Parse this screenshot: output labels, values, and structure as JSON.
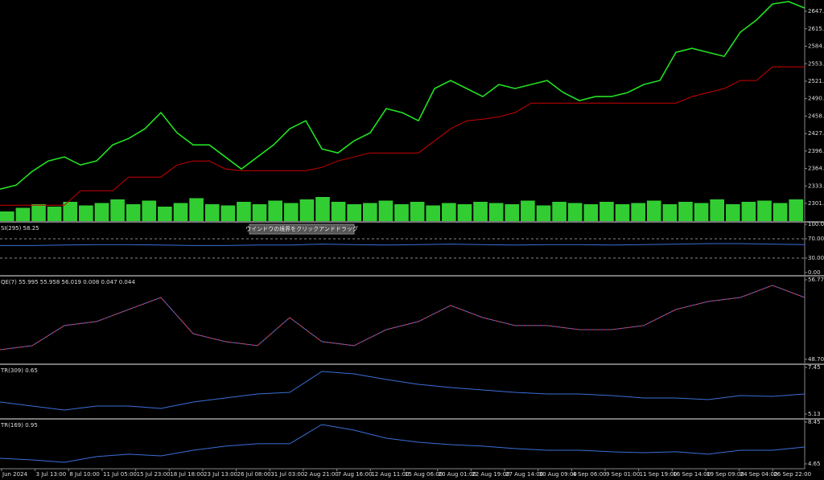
{
  "chart_data": [
    {
      "type": "line",
      "ylim": [
        2270,
        2667.6
      ],
      "yticks": [
        2647.3,
        2615.9,
        2584.5,
        {
          "value": 2553.0,
          "label": "2553.0"
        },
        2521.6,
        2490.2,
        2458.8,
        2427.4,
        {
          "value": 2396.0,
          "label": "2396.0"
        },
        2364.6,
        2333.2,
        2301.8
      ],
      "series": [
        {
          "color": "#22e022",
          "values": [
            2327.5,
            2334.7,
            2359.3,
            2378.2,
            2385.4,
            2370.9,
            2378.2,
            2407.1,
            2418.7,
            2436.0,
            2465.0,
            2428.8,
            2407.1,
            2407.1,
            2385.4,
            2363.7,
            2385.4,
            2407.1,
            2436.0,
            2450.5,
            2399.9,
            2392.6,
            2414.3,
            2428.8,
            2472.2,
            2465.0,
            2450.5,
            2508.4,
            2522.9,
            2508.4,
            2493.9,
            2515.6,
            2508.4,
            2515.6,
            2522.9,
            2501.2,
            2486.7,
            2493.9,
            2493.9,
            2501.2,
            2515.6,
            2522.9,
            2573.5,
            2580.7,
            2573.5,
            2566.3,
            2609.7,
            2631.4,
            2660.3,
            2664.7,
            2653.1
          ]
        },
        {
          "color": "#cc0000",
          "values": [
            2298.6,
            2298.6,
            2298.6,
            2298.6,
            2298.6,
            2324.6,
            2324.6,
            2324.6,
            2349.2,
            2349.2,
            2349.2,
            2370.9,
            2378.2,
            2378.2,
            2363.7,
            2360.8,
            2360.8,
            2360.8,
            2360.8,
            2360.8,
            2366.6,
            2378.2,
            2385.4,
            2392.6,
            2392.6,
            2392.6,
            2392.6,
            2414.3,
            2436.0,
            2450.5,
            2453.4,
            2457.7,
            2465.0,
            2482.3,
            2482.3,
            2482.3,
            2482.3,
            2482.3,
            2482.3,
            2482.3,
            2482.3,
            2482.3,
            2482.3,
            2493.9,
            2501.2,
            2508.4,
            2522.9,
            2522.9,
            2547.5,
            2547.5,
            2547.5
          ]
        }
      ],
      "volume": {
        "color": "#32cd32",
        "values": [
          40,
          55,
          70,
          60,
          80,
          65,
          75,
          90,
          70,
          85,
          60,
          75,
          95,
          70,
          65,
          80,
          70,
          85,
          75,
          90,
          100,
          80,
          70,
          75,
          85,
          70,
          80,
          65,
          75,
          70,
          80,
          75,
          70,
          85,
          65,
          80,
          75,
          70,
          80,
          70,
          75,
          85,
          70,
          80,
          75,
          90,
          70,
          80,
          85,
          75,
          90
        ]
      }
    },
    {
      "type": "line",
      "title": "SI(295) 58.25",
      "ylim": [
        -5,
        103.3
      ],
      "yticks": [
        {
          "value": 100,
          "label": "100.00"
        },
        {
          "value": 70,
          "label": "70.00"
        },
        {
          "value": 30,
          "label": "30.00"
        },
        {
          "value": 0,
          "label": "0.00"
        }
      ],
      "levels": [
        70,
        30
      ],
      "series": [
        {
          "color": "#3a6fd8",
          "values": [
            56,
            56,
            57,
            58,
            58,
            57,
            56,
            56,
            57,
            57,
            59,
            58,
            57,
            58,
            59,
            58,
            57,
            58,
            58,
            57,
            58,
            59,
            60,
            60,
            59,
            58
          ]
        }
      ]
    },
    {
      "type": "line",
      "title": "QE(7) 55.995 55.958 56.019 0.008 0.047 0.044",
      "ylim": [
        48.29,
        57.1
      ],
      "yticks": [
        56.777,
        48.702
      ],
      "series": [
        {
          "color": "#3a6fd8",
          "dash_color": "#ff3030",
          "values": [
            49.68,
            50.09,
            52.13,
            52.54,
            53.76,
            54.98,
            51.31,
            50.5,
            50.09,
            52.94,
            50.5,
            50.09,
            51.72,
            52.54,
            54.17,
            52.94,
            52.13,
            52.13,
            51.72,
            51.72,
            52.13,
            53.76,
            54.57,
            54.98,
            56.21,
            54.98
          ]
        }
      ]
    },
    {
      "type": "line",
      "title": "TR(309) 0.65",
      "ylim": [
        4.93,
        7.57
      ],
      "yticks": [
        7.45,
        5.13
      ],
      "series": [
        {
          "color": "#3a6fd8",
          "values": [
            5.73,
            5.53,
            5.33,
            5.53,
            5.53,
            5.41,
            5.73,
            5.93,
            6.13,
            6.21,
            7.25,
            7.13,
            6.85,
            6.61,
            6.45,
            6.33,
            6.21,
            6.13,
            6.13,
            6.05,
            5.93,
            5.93,
            5.85,
            6.05,
            6.01,
            6.13
          ]
        }
      ]
    },
    {
      "type": "line",
      "title": "TR(169) 0.95",
      "ylim": [
        4.28,
        8.67
      ],
      "yticks": [
        8.45,
        4.65
      ],
      "series": [
        {
          "color": "#3a6fd8",
          "values": [
            5.16,
            5.01,
            4.79,
            5.31,
            5.53,
            5.38,
            5.89,
            6.26,
            6.48,
            6.48,
            8.23,
            7.72,
            6.99,
            6.62,
            6.4,
            6.26,
            6.04,
            5.89,
            5.89,
            5.75,
            5.67,
            5.75,
            5.53,
            5.89,
            5.89,
            6.18
          ]
        }
      ]
    }
  ],
  "time_axis": {
    "labels": [
      "Jun 2024",
      "3 Jul 13:00",
      "8 Jul 10:00",
      "11 Jul 05:00",
      "15 Jul 23:00",
      "18 Jul 18:00",
      "23 Jul 13:00",
      "26 Jul 08:00",
      "31 Jul 03:00",
      "2 Aug 21:00",
      "7 Aug 16:00",
      "12 Aug 11:00",
      "15 Aug 06:00",
      "20 Aug 01:00",
      "22 Aug 19:00",
      "27 Aug 14:00",
      "30 Aug 09:00",
      "4 Sep 06:00",
      "9 Sep 01:00",
      "11 Sep 19:00",
      "16 Sep 14:00",
      "19 Sep 09:00",
      "24 Sep 04:00",
      "26 Sep 22:00"
    ]
  },
  "tooltip": "ウインドウの境界をクリックアンドドラッグ"
}
